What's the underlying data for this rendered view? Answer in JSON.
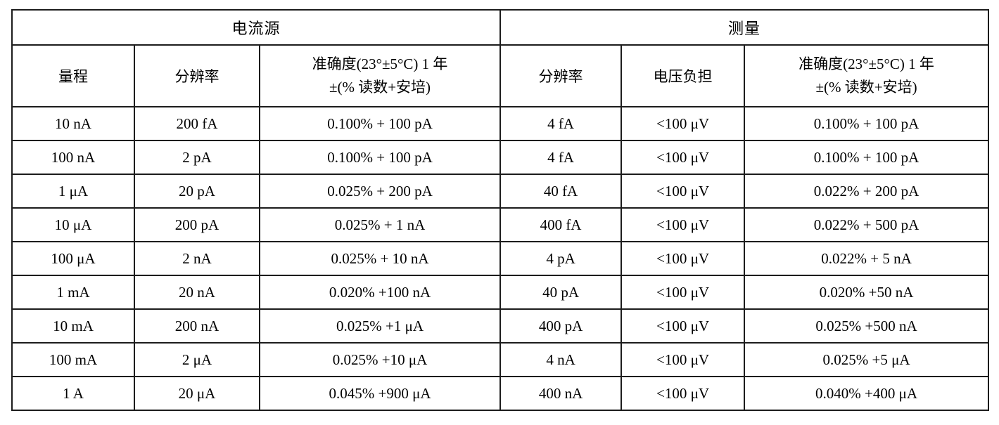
{
  "table": {
    "sections": {
      "current_source": "电流源",
      "measure": "测量"
    },
    "columns": {
      "range": "量程",
      "resolution_source": "分辨率",
      "accuracy_line1": "准确度(23°±5°C) 1 年",
      "accuracy_line2": "±(%  读数+安培)",
      "resolution_measure": "分辨率",
      "voltage_burden": "电压负担"
    },
    "rows": [
      [
        "10 nA",
        "200 fA",
        "0.100% + 100 pA",
        "4 fA",
        "<100 μV",
        "0.100% + 100 pA"
      ],
      [
        "100 nA",
        "2 pA",
        "0.100% + 100 pA",
        "4 fA",
        "<100 μV",
        "0.100% + 100 pA"
      ],
      [
        "1 μA",
        "20 pA",
        "0.025% + 200 pA",
        "40 fA",
        "<100 μV",
        "0.022% + 200 pA"
      ],
      [
        "10 μA",
        "200 pA",
        "0.025% + 1 nA",
        "400 fA",
        "<100 μV",
        "0.022% + 500 pA"
      ],
      [
        "100 μA",
        "2 nA",
        "0.025% + 10 nA",
        "4 pA",
        "<100 μV",
        "0.022% + 5 nA"
      ],
      [
        "1 mA",
        "20 nA",
        "0.020% +100 nA",
        "40 pA",
        "<100 μV",
        "0.020% +50 nA"
      ],
      [
        "10 mA",
        "200 nA",
        "0.025% +1 μA",
        "400 pA",
        "<100 μV",
        "0.025% +500 nA"
      ],
      [
        "100 mA",
        "2 μA",
        "0.025% +10 μA",
        "4 nA",
        "<100 μV",
        "0.025% +5 μA"
      ],
      [
        "1 A",
        "20 μA",
        "0.045% +900 μA",
        "400 nA",
        "<100 μV",
        "0.040% +400 μA"
      ]
    ]
  }
}
